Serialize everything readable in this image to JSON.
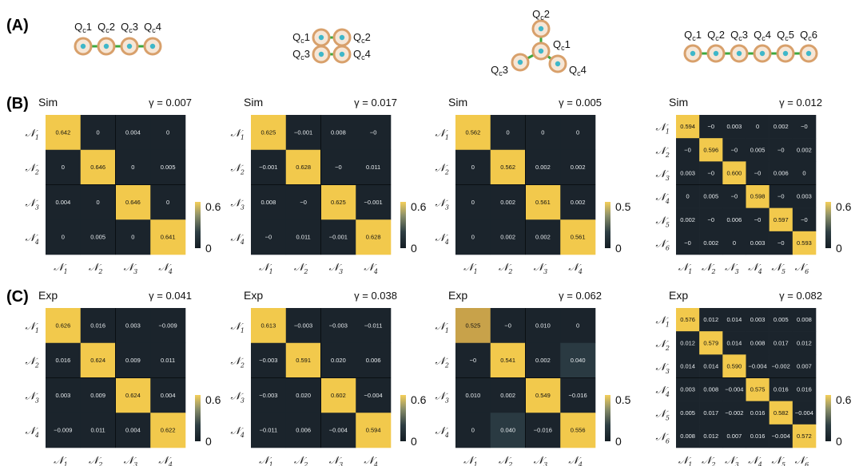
{
  "panel_labels": [
    "(A)",
    "(B)",
    "(C)"
  ],
  "topologies": [
    {
      "qubits": [
        "Qc1",
        "Qc2",
        "Qc3",
        "Qc4"
      ],
      "layout": "chain"
    },
    {
      "qubits": [
        "Qc1",
        "Qc2",
        "Qc3",
        "Qc4"
      ],
      "layout": "square"
    },
    {
      "qubits": [
        "Qc1",
        "Qc2",
        "Qc3",
        "Qc4"
      ],
      "layout": "star"
    },
    {
      "qubits": [
        "Qc1",
        "Qc2",
        "Qc3",
        "Qc4",
        "Qc5",
        "Qc6"
      ],
      "layout": "chain"
    }
  ],
  "colors": {
    "dark": "#1b242c",
    "high": "#f2c94c",
    "mid": "#c8a24a",
    "edge": "#3da83d",
    "ring": "#d8a06b",
    "core": "#3fb7c9"
  },
  "chart_data": [
    {
      "type": "heatmap",
      "row": "Sim",
      "title": "Sim",
      "gamma": "γ = 0.007",
      "n": 4,
      "colorbar": {
        "ticks": [
          "0",
          "0.6"
        ],
        "max": 0.6
      },
      "values": [
        [
          "0.642",
          "0",
          "0.004",
          "0"
        ],
        [
          "0",
          "0.646",
          "0",
          "0.005"
        ],
        [
          "0.004",
          "0",
          "0.646",
          "0"
        ],
        [
          "0",
          "0.005",
          "0",
          "0.641"
        ]
      ]
    },
    {
      "type": "heatmap",
      "row": "Sim",
      "title": "Sim",
      "gamma": "γ = 0.017",
      "n": 4,
      "colorbar": {
        "ticks": [
          "0",
          "0.6"
        ],
        "max": 0.6
      },
      "values": [
        [
          "0.625",
          "−0.001",
          "0.008",
          "−0"
        ],
        [
          "−0.001",
          "0.628",
          "−0",
          "0.011"
        ],
        [
          "0.008",
          "−0",
          "0.625",
          "−0.001"
        ],
        [
          "−0",
          "0.011",
          "−0.001",
          "0.628"
        ]
      ]
    },
    {
      "type": "heatmap",
      "row": "Sim",
      "title": "Sim",
      "gamma": "γ = 0.005",
      "n": 4,
      "colorbar": {
        "ticks": [
          "0",
          "0.5"
        ],
        "max": 0.5
      },
      "values": [
        [
          "0.562",
          "0",
          "0",
          "0"
        ],
        [
          "0",
          "0.562",
          "0.002",
          "0.002"
        ],
        [
          "0",
          "0.002",
          "0.561",
          "0.002"
        ],
        [
          "0",
          "0.002",
          "0.002",
          "0.561"
        ]
      ]
    },
    {
      "type": "heatmap",
      "row": "Sim",
      "title": "Sim",
      "gamma": "γ = 0.012",
      "n": 6,
      "colorbar": {
        "ticks": [
          "0",
          "0.6"
        ],
        "max": 0.6
      },
      "values": [
        [
          "0.594",
          "−0",
          "0.003",
          "0",
          "0.002",
          "−0"
        ],
        [
          "−0",
          "0.596",
          "−0",
          "0.005",
          "−0",
          "0.002"
        ],
        [
          "0.003",
          "−0",
          "0.600",
          "−0",
          "0.006",
          "0"
        ],
        [
          "0",
          "0.005",
          "−0",
          "0.598",
          "−0",
          "0.003"
        ],
        [
          "0.002",
          "−0",
          "0.006",
          "−0",
          "0.597",
          "−0"
        ],
        [
          "−0",
          "0.002",
          "0",
          "0.003",
          "−0",
          "0.593"
        ]
      ]
    },
    {
      "type": "heatmap",
      "row": "Exp",
      "title": "Exp",
      "gamma": "γ = 0.041",
      "n": 4,
      "colorbar": {
        "ticks": [
          "0",
          "0.6"
        ],
        "max": 0.6
      },
      "values": [
        [
          "0.626",
          "0.016",
          "0.003",
          "−0.009"
        ],
        [
          "0.016",
          "0.624",
          "0.009",
          "0.011"
        ],
        [
          "0.003",
          "0.009",
          "0.624",
          "0.004"
        ],
        [
          "−0.009",
          "0.011",
          "0.004",
          "0.622"
        ]
      ]
    },
    {
      "type": "heatmap",
      "row": "Exp",
      "title": "Exp",
      "gamma": "γ = 0.038",
      "n": 4,
      "colorbar": {
        "ticks": [
          "0",
          "0.6"
        ],
        "max": 0.6
      },
      "values": [
        [
          "0.613",
          "−0.003",
          "−0.003",
          "−0.011"
        ],
        [
          "−0.003",
          "0.591",
          "0.020",
          "0.006"
        ],
        [
          "−0.003",
          "0.020",
          "0.602",
          "−0.004"
        ],
        [
          "−0.011",
          "0.006",
          "−0.004",
          "0.594"
        ]
      ]
    },
    {
      "type": "heatmap",
      "row": "Exp",
      "title": "Exp",
      "gamma": "γ = 0.062",
      "n": 4,
      "colorbar": {
        "ticks": [
          "0",
          "0.5"
        ],
        "max": 0.5
      },
      "values": [
        [
          "0.525",
          "−0",
          "0.010",
          "0"
        ],
        [
          "−0",
          "0.541",
          "0.002",
          "0.040"
        ],
        [
          "0.010",
          "0.002",
          "0.549",
          "−0.016"
        ],
        [
          "0",
          "0.040",
          "−0.016",
          "0.556"
        ]
      ]
    },
    {
      "type": "heatmap",
      "row": "Exp",
      "title": "Exp",
      "gamma": "γ = 0.082",
      "n": 6,
      "colorbar": {
        "ticks": [
          "0",
          "0.6"
        ],
        "max": 0.6
      },
      "values": [
        [
          "0.576",
          "0.012",
          "0.014",
          "0.003",
          "0.005",
          "0.008"
        ],
        [
          "0.012",
          "0.579",
          "0.014",
          "0.008",
          "0.017",
          "0.012"
        ],
        [
          "0.014",
          "0.014",
          "0.590",
          "−0.004",
          "−0.002",
          "0.007"
        ],
        [
          "0.003",
          "0.008",
          "−0.004",
          "0.575",
          "0.016",
          "0.016"
        ],
        [
          "0.005",
          "0.017",
          "−0.002",
          "0.016",
          "0.582",
          "−0.004"
        ],
        [
          "0.008",
          "0.012",
          "0.007",
          "0.016",
          "−0.004",
          "0.572"
        ]
      ]
    }
  ]
}
